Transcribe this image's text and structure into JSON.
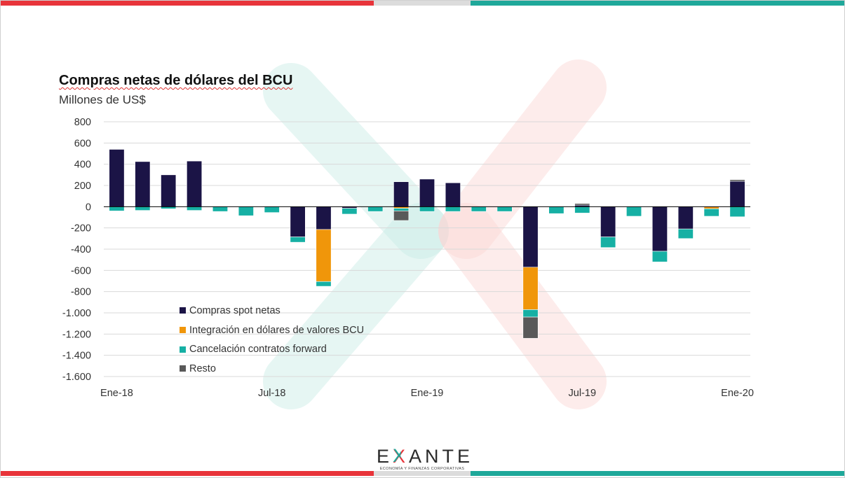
{
  "title": "Compras netas de dólares del BCU",
  "subtitle": "Millones de US$",
  "colors": {
    "stripe_red": "#e8343a",
    "stripe_grey": "#dcdcdc",
    "stripe_teal": "#1fa89a",
    "grid": "#d9d9d9"
  },
  "logo": {
    "pre": "E",
    "x": "X",
    "post": "ANTE",
    "tagline": "ECONOMÍA Y FINANZAS CORPORATIVAS"
  },
  "chart_data": {
    "type": "bar",
    "stacked": true,
    "ylim": [
      -1600,
      800
    ],
    "yticks": [
      800,
      600,
      400,
      200,
      0,
      -200,
      -400,
      -600,
      -800,
      -1000,
      -1200,
      -1400,
      -1600
    ],
    "ytick_labels": [
      "800",
      "600",
      "400",
      "200",
      "0",
      "-200",
      "-400",
      "-600",
      "-800",
      "-1.000",
      "-1.200",
      "-1.400",
      "-1.600"
    ],
    "x_tick_labels": [
      "Ene-18",
      "Jul-18",
      "Ene-19",
      "Jul-19",
      "Ene-20"
    ],
    "x_tick_every": 6,
    "n_periods": 25,
    "grid": true,
    "legend_position": "lower-left",
    "series": [
      {
        "name": "Compras spot netas",
        "color": "#1b1446",
        "values": [
          540,
          425,
          300,
          430,
          0,
          0,
          0,
          -285,
          -215,
          -15,
          0,
          235,
          260,
          225,
          0,
          0,
          -570,
          0,
          15,
          -285,
          0,
          -420,
          -210,
          0,
          240
        ]
      },
      {
        "name": "Integración en dólares de valores BCU",
        "color": "#f0960a",
        "values": [
          0,
          0,
          0,
          0,
          0,
          0,
          0,
          0,
          -490,
          0,
          0,
          -15,
          0,
          0,
          0,
          0,
          -400,
          0,
          0,
          0,
          0,
          0,
          0,
          -20,
          0
        ]
      },
      {
        "name": "Cancelación contratos forward",
        "color": "#16b0a4",
        "values": [
          -40,
          -35,
          -20,
          -35,
          -45,
          -85,
          -55,
          -50,
          -45,
          -55,
          -45,
          -25,
          -45,
          -45,
          -45,
          -45,
          -70,
          -65,
          -60,
          -100,
          -90,
          -100,
          -90,
          -70,
          -95
        ]
      },
      {
        "name": "Resto",
        "color": "#595959",
        "values": [
          0,
          0,
          0,
          0,
          0,
          0,
          0,
          0,
          0,
          0,
          0,
          -90,
          0,
          0,
          0,
          0,
          -200,
          0,
          15,
          0,
          0,
          0,
          0,
          0,
          15
        ]
      }
    ]
  }
}
